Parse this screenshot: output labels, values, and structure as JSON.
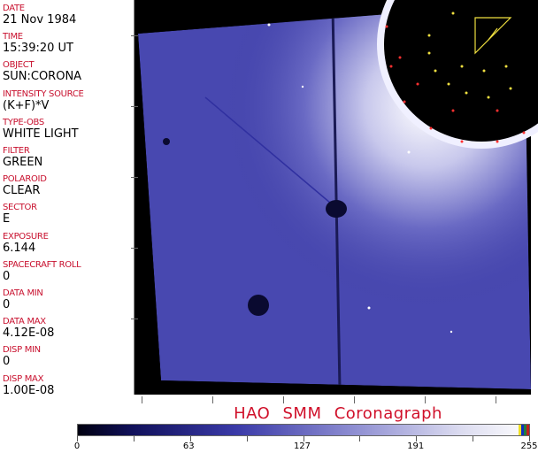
{
  "fields": [
    {
      "label": "DATE",
      "value": "21 Nov 1984"
    },
    {
      "label": "TIME",
      "value": "15:39:20 UT"
    },
    {
      "label": "OBJECT",
      "value": "SUN:CORONA"
    },
    {
      "label": "INTENSITY SOURCE",
      "value": "(K+F)*V"
    },
    {
      "label": "TYPE-OBS",
      "value": "WHITE LIGHT"
    },
    {
      "label": "FILTER",
      "value": "GREEN"
    },
    {
      "label": "POLAROID",
      "value": "CLEAR"
    },
    {
      "label": "SECTOR",
      "value": "E"
    },
    {
      "label": "EXPOSURE",
      "value": "6.144"
    },
    {
      "label": "SPACECRAFT ROLL",
      "value": "0"
    },
    {
      "label": "DATA MIN",
      "value": "0"
    },
    {
      "label": "DATA MAX",
      "value": "4.12E-08"
    },
    {
      "label": "DISP MIN",
      "value": "0"
    },
    {
      "label": "DISP MAX",
      "value": "1.00E-08"
    }
  ],
  "title": "HAO  SMM Coronagraph",
  "colorbar": {
    "ticks": [
      "0",
      "63",
      "127",
      "191",
      "255"
    ],
    "colors": {
      "low": "#000010",
      "mid": "#3a3aa8",
      "high": "#f8f8fc",
      "cap_colors": [
        "#f0e020",
        "#1030c0",
        "#208040",
        "#c02020"
      ]
    }
  }
}
